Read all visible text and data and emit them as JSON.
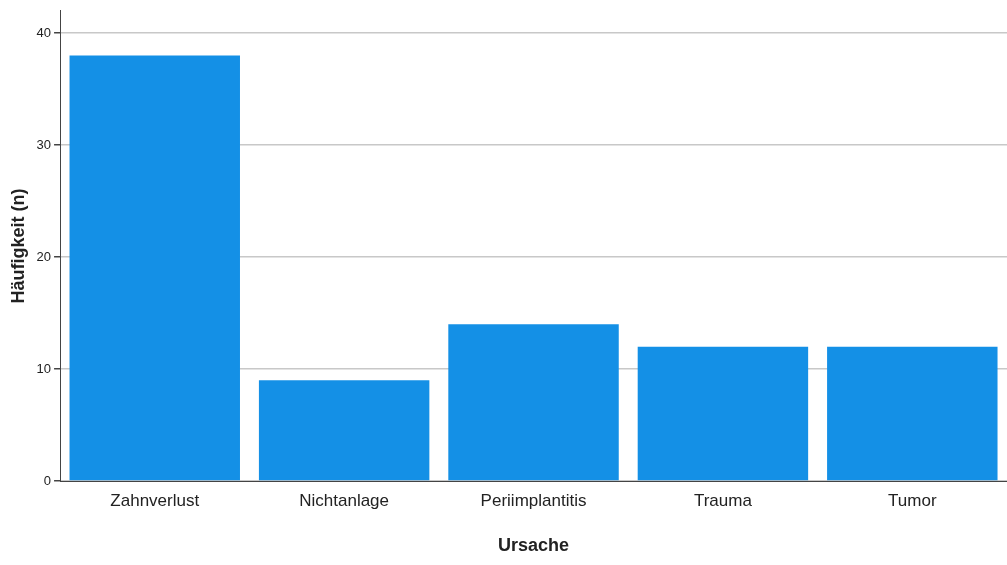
{
  "chart_data": {
    "type": "bar",
    "xlabel": "Ursache",
    "ylabel": "Häufigkeit (n)",
    "categories": [
      "Zahnverlust",
      "Nichtanlage",
      "Periimplantitis",
      "Trauma",
      "Tumor"
    ],
    "values": [
      38,
      9,
      14,
      12,
      12
    ],
    "color": "#1490e6",
    "ylim": [
      0,
      42
    ],
    "yticks": [
      0,
      10,
      20,
      30,
      40
    ],
    "grid": "y",
    "legend": false
  }
}
